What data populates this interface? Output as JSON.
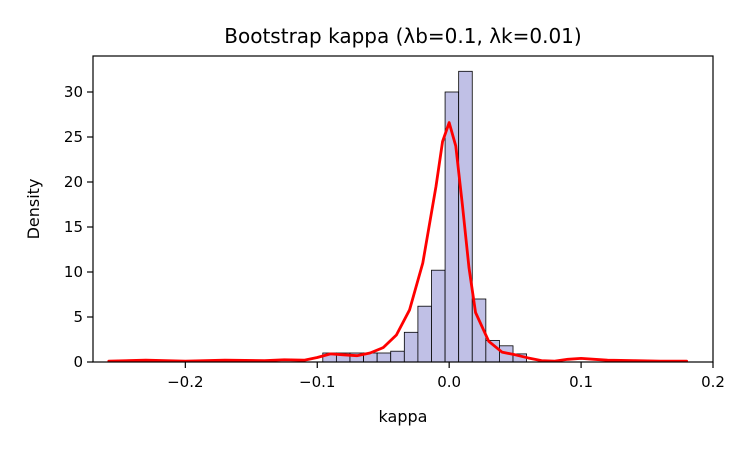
{
  "chart_data": {
    "type": "bar",
    "title": "Bootstrap kappa (λb=0.1, λk=0.01)",
    "xlabel": "kappa",
    "ylabel": "Density",
    "xlim": [
      -0.27,
      0.2
    ],
    "ylim": [
      0,
      34
    ],
    "xticks": [
      -0.2,
      -0.1,
      0.0,
      0.1,
      0.2
    ],
    "xtick_labels": [
      "−0.2",
      "−0.1",
      "0.0",
      "0.1",
      "0.2"
    ],
    "yticks": [
      0,
      5,
      10,
      15,
      20,
      25,
      30
    ],
    "ytick_labels": [
      "0",
      "5",
      "10",
      "15",
      "20",
      "25",
      "30"
    ],
    "grid": false,
    "bar_color": "#c0c0e6",
    "bar_edge_color": "#000000",
    "kde_color": "#ff0000",
    "histogram": {
      "bin_width": 0.0103,
      "bin_starts": [
        -0.0958,
        -0.0855,
        -0.0752,
        -0.0649,
        -0.0546,
        -0.0443,
        -0.034,
        -0.0237,
        -0.0134,
        -0.0031,
        0.0072,
        0.0175,
        0.0278,
        0.0381,
        0.0484
      ],
      "density": [
        1.0,
        1.0,
        1.0,
        1.0,
        1.0,
        1.2,
        3.3,
        6.2,
        10.2,
        30.0,
        32.3,
        7.0,
        2.4,
        1.8,
        0.9
      ]
    },
    "kde": {
      "x": [
        -0.258,
        -0.23,
        -0.2,
        -0.17,
        -0.14,
        -0.125,
        -0.11,
        -0.1,
        -0.09,
        -0.08,
        -0.07,
        -0.06,
        -0.05,
        -0.04,
        -0.03,
        -0.02,
        -0.01,
        -0.005,
        0.0,
        0.005,
        0.01,
        0.015,
        0.02,
        0.03,
        0.04,
        0.05,
        0.06,
        0.07,
        0.08,
        0.09,
        0.1,
        0.11,
        0.12,
        0.14,
        0.16,
        0.18
      ],
      "y": [
        0.1,
        0.2,
        0.1,
        0.2,
        0.15,
        0.25,
        0.2,
        0.5,
        0.9,
        0.8,
        0.7,
        1.0,
        1.6,
        3.0,
        5.8,
        11.0,
        19.5,
        24.5,
        26.6,
        24.0,
        17.5,
        10.5,
        5.5,
        2.3,
        1.1,
        0.8,
        0.45,
        0.15,
        0.1,
        0.3,
        0.4,
        0.3,
        0.2,
        0.15,
        0.1,
        0.1
      ]
    }
  }
}
